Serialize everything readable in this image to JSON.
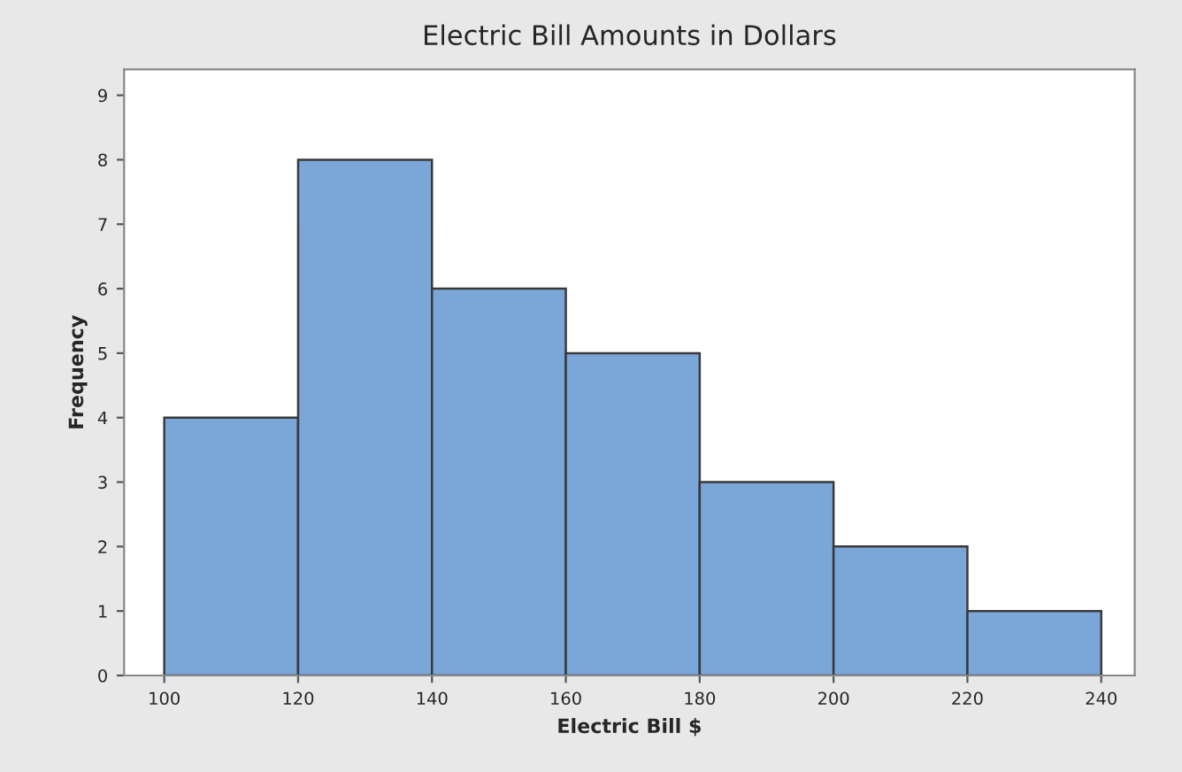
{
  "chart_data": {
    "type": "histogram",
    "title": "Electric Bill Amounts in Dollars",
    "xlabel": "Electric Bill $",
    "ylabel": "Frequency",
    "bins": [
      100,
      120,
      140,
      160,
      180,
      200,
      220,
      240
    ],
    "values": [
      4,
      8,
      6,
      5,
      3,
      2,
      1
    ],
    "color": "#7ba6d8",
    "xlim": [
      94,
      245
    ],
    "xticks": [
      100,
      120,
      140,
      160,
      180,
      200,
      220,
      240
    ],
    "ylim": [
      0,
      9.4
    ],
    "yticks": [
      0,
      1,
      2,
      3,
      4,
      5,
      6,
      7,
      8,
      9
    ],
    "grid": false,
    "legend": false
  }
}
